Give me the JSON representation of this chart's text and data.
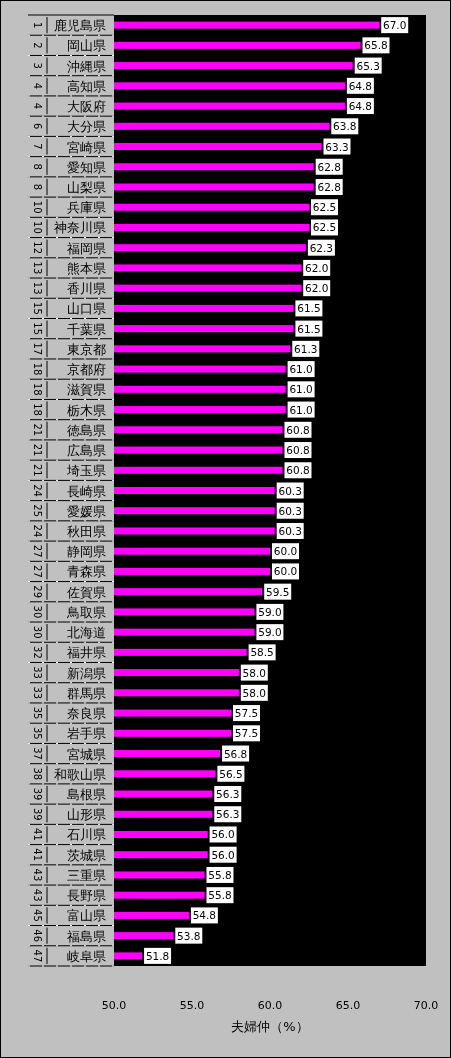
{
  "chart_data": {
    "type": "bar",
    "orientation": "horizontal",
    "xlabel": "夫婦仲（%）",
    "color": "#ff00ff",
    "data_labels": true,
    "grid": false,
    "categories": [
      "鹿児島県",
      "岡山県",
      "沖縄県",
      "高知県",
      "大阪府",
      "大分県",
      "宮崎県",
      "愛知県",
      "山梨県",
      "兵庫県",
      "神奈川県",
      "福岡県",
      "熊本県",
      "香川県",
      "山口県",
      "千葉県",
      "東京都",
      "京都府",
      "滋賀県",
      "栃木県",
      "徳島県",
      "広島県",
      "埼玉県",
      "長崎県",
      "愛媛県",
      "秋田県",
      "静岡県",
      "青森県",
      "佐賀県",
      "鳥取県",
      "北海道",
      "福井県",
      "新潟県",
      "群馬県",
      "奈良県",
      "岩手県",
      "宮城県",
      "和歌山県",
      "島根県",
      "山形県",
      "石川県",
      "茨城県",
      "三重県",
      "長野県",
      "富山県",
      "福島県",
      "岐阜県"
    ],
    "values": [
      67.0,
      65.8,
      65.3,
      64.8,
      64.8,
      63.8,
      63.3,
      62.8,
      62.8,
      62.5,
      62.5,
      62.3,
      62.0,
      62.0,
      61.5,
      61.5,
      61.3,
      61.0,
      61.0,
      61.0,
      60.8,
      60.8,
      60.8,
      60.3,
      60.3,
      60.3,
      60.0,
      60.0,
      59.5,
      59.0,
      59.0,
      58.5,
      58.0,
      58.0,
      57.5,
      57.5,
      56.8,
      56.5,
      56.3,
      56.3,
      56.0,
      56.0,
      55.8,
      55.8,
      54.8,
      53.8,
      51.8
    ],
    "value_labels": [
      "67.0",
      "65.8",
      "65.3",
      "64.8",
      "64.8",
      "63.8",
      "63.3",
      "62.8",
      "62.8",
      "62.5",
      "62.5",
      "62.3",
      "62.0",
      "62.0",
      "61.5",
      "61.5",
      "61.3",
      "61.0",
      "61.0",
      "61.0",
      "60.8",
      "60.8",
      "60.8",
      "60.3",
      "60.3",
      "60.3",
      "60.0",
      "60.0",
      "59.5",
      "59.0",
      "59.0",
      "58.5",
      "58.0",
      "58.0",
      "57.5",
      "57.5",
      "56.8",
      "56.5",
      "56.3",
      "56.3",
      "56.0",
      "56.0",
      "55.8",
      "55.8",
      "54.8",
      "53.8",
      "51.8"
    ],
    "annotations": [
      "1",
      "2",
      "3",
      "4",
      "4",
      "6",
      "7",
      "8",
      "8",
      "10",
      "10",
      "12",
      "13",
      "13",
      "15",
      "15",
      "17",
      "18",
      "18",
      "18",
      "21",
      "21",
      "21",
      "24",
      "25",
      "24",
      "27",
      "27",
      "29",
      "30",
      "30",
      "32",
      "33",
      "33",
      "35",
      "35",
      "37",
      "38",
      "39",
      "39",
      "41",
      "41",
      "43",
      "43",
      "45",
      "46",
      "47"
    ],
    "xlim": [
      50,
      70
    ],
    "xticks": [
      {
        "value": 50,
        "label": "50.0"
      },
      {
        "value": 55,
        "label": "55.0"
      },
      {
        "value": 60,
        "label": "60.0"
      },
      {
        "value": 65,
        "label": "65.0"
      },
      {
        "value": 70,
        "label": "70.0"
      }
    ]
  }
}
